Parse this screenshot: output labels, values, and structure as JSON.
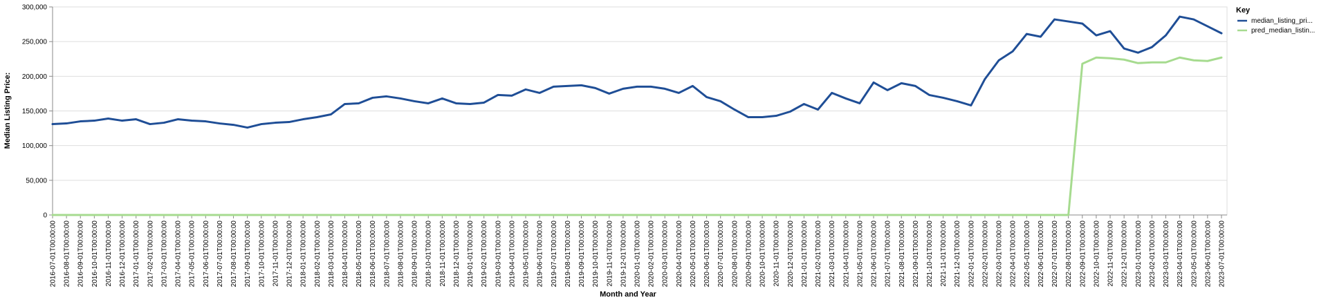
{
  "chart_data": {
    "type": "line",
    "xlabel": "Month and Year",
    "ylabel": "Median Listing Price:",
    "ylim": [
      0,
      300000
    ],
    "yticks": [
      0,
      50000,
      100000,
      150000,
      200000,
      250000,
      300000
    ],
    "ytick_labels": [
      "0",
      "50,000",
      "100,000",
      "150,000",
      "200,000",
      "250,000",
      "300,000"
    ],
    "grid": true,
    "legend": {
      "title": "Key",
      "position": "top-right"
    },
    "x": [
      "2016-07-01T00:00:00",
      "2016-08-01T00:00:00",
      "2016-09-01T00:00:00",
      "2016-10-01T00:00:00",
      "2016-11-01T00:00:00",
      "2016-12-01T00:00:00",
      "2017-01-01T00:00:00",
      "2017-02-01T00:00:00",
      "2017-03-01T00:00:00",
      "2017-04-01T00:00:00",
      "2017-05-01T00:00:00",
      "2017-06-01T00:00:00",
      "2017-07-01T00:00:00",
      "2017-08-01T00:00:00",
      "2017-09-01T00:00:00",
      "2017-10-01T00:00:00",
      "2017-11-01T00:00:00",
      "2017-12-01T00:00:00",
      "2018-01-01T00:00:00",
      "2018-02-01T00:00:00",
      "2018-03-01T00:00:00",
      "2018-04-01T00:00:00",
      "2018-05-01T00:00:00",
      "2018-06-01T00:00:00",
      "2018-07-01T00:00:00",
      "2018-08-01T00:00:00",
      "2018-09-01T00:00:00",
      "2018-10-01T00:00:00",
      "2018-11-01T00:00:00",
      "2018-12-01T00:00:00",
      "2019-01-01T00:00:00",
      "2019-02-01T00:00:00",
      "2019-03-01T00:00:00",
      "2019-04-01T00:00:00",
      "2019-05-01T00:00:00",
      "2019-06-01T00:00:00",
      "2019-07-01T00:00:00",
      "2019-08-01T00:00:00",
      "2019-09-01T00:00:00",
      "2019-10-01T00:00:00",
      "2019-11-01T00:00:00",
      "2019-12-01T00:00:00",
      "2020-01-01T00:00:00",
      "2020-02-01T00:00:00",
      "2020-03-01T00:00:00",
      "2020-04-01T00:00:00",
      "2020-05-01T00:00:00",
      "2020-06-01T00:00:00",
      "2020-07-01T00:00:00",
      "2020-08-01T00:00:00",
      "2020-09-01T00:00:00",
      "2020-10-01T00:00:00",
      "2020-11-01T00:00:00",
      "2020-12-01T00:00:00",
      "2021-01-01T00:00:00",
      "2021-02-01T00:00:00",
      "2021-03-01T00:00:00",
      "2021-04-01T00:00:00",
      "2021-05-01T00:00:00",
      "2021-06-01T00:00:00",
      "2021-07-01T00:00:00",
      "2021-08-01T00:00:00",
      "2021-09-01T00:00:00",
      "2021-10-01T00:00:00",
      "2021-11-01T00:00:00",
      "2021-12-01T00:00:00",
      "2022-01-01T00:00:00",
      "2022-02-01T00:00:00",
      "2022-03-01T00:00:00",
      "2022-04-01T00:00:00",
      "2022-05-01T00:00:00",
      "2022-06-01T00:00:00",
      "2022-07-01T00:00:00",
      "2022-08-01T00:00:00",
      "2022-09-01T00:00:00",
      "2022-10-01T00:00:00",
      "2022-11-01T00:00:00",
      "2022-12-01T00:00:00",
      "2023-01-01T00:00:00",
      "2023-02-01T00:00:00",
      "2023-03-01T00:00:00",
      "2023-04-01T00:00:00",
      "2023-05-01T00:00:00",
      "2023-06-01T00:00:00",
      "2023-07-01T00:00:00"
    ],
    "series": [
      {
        "name": "median_listing_pri...",
        "color": "#1f4e96",
        "values": [
          131000,
          132000,
          135000,
          136000,
          139000,
          136000,
          138000,
          131000,
          133000,
          138000,
          136000,
          135000,
          132000,
          130000,
          126000,
          131000,
          133000,
          134000,
          138000,
          141000,
          145000,
          160000,
          161000,
          169000,
          171000,
          168000,
          164000,
          161000,
          168000,
          161000,
          160000,
          162000,
          173000,
          172000,
          181000,
          176000,
          185000,
          186000,
          187000,
          183000,
          175000,
          182000,
          185000,
          185000,
          182000,
          176000,
          186000,
          170000,
          164000,
          152000,
          141000,
          141000,
          143000,
          149000,
          160000,
          152000,
          176000,
          168000,
          161000,
          191000,
          180000,
          190000,
          186000,
          173000,
          169000,
          164000,
          158000,
          196000,
          223000,
          236000,
          261000,
          257000,
          282000,
          279000,
          276000,
          259000,
          265000,
          240000,
          234000,
          242000,
          259000,
          286000,
          282000,
          272000,
          262000
        ]
      },
      {
        "name": "pred_median_listin...",
        "color": "#a6db8f",
        "values": [
          0,
          0,
          0,
          0,
          0,
          0,
          0,
          0,
          0,
          0,
          0,
          0,
          0,
          0,
          0,
          0,
          0,
          0,
          0,
          0,
          0,
          0,
          0,
          0,
          0,
          0,
          0,
          0,
          0,
          0,
          0,
          0,
          0,
          0,
          0,
          0,
          0,
          0,
          0,
          0,
          0,
          0,
          0,
          0,
          0,
          0,
          0,
          0,
          0,
          0,
          0,
          0,
          0,
          0,
          0,
          0,
          0,
          0,
          0,
          0,
          0,
          0,
          0,
          0,
          0,
          0,
          0,
          0,
          0,
          0,
          0,
          0,
          0,
          0,
          218000,
          227000,
          226000,
          224000,
          219000,
          220000,
          220000,
          227000,
          223000,
          222000,
          227000
        ]
      }
    ]
  }
}
